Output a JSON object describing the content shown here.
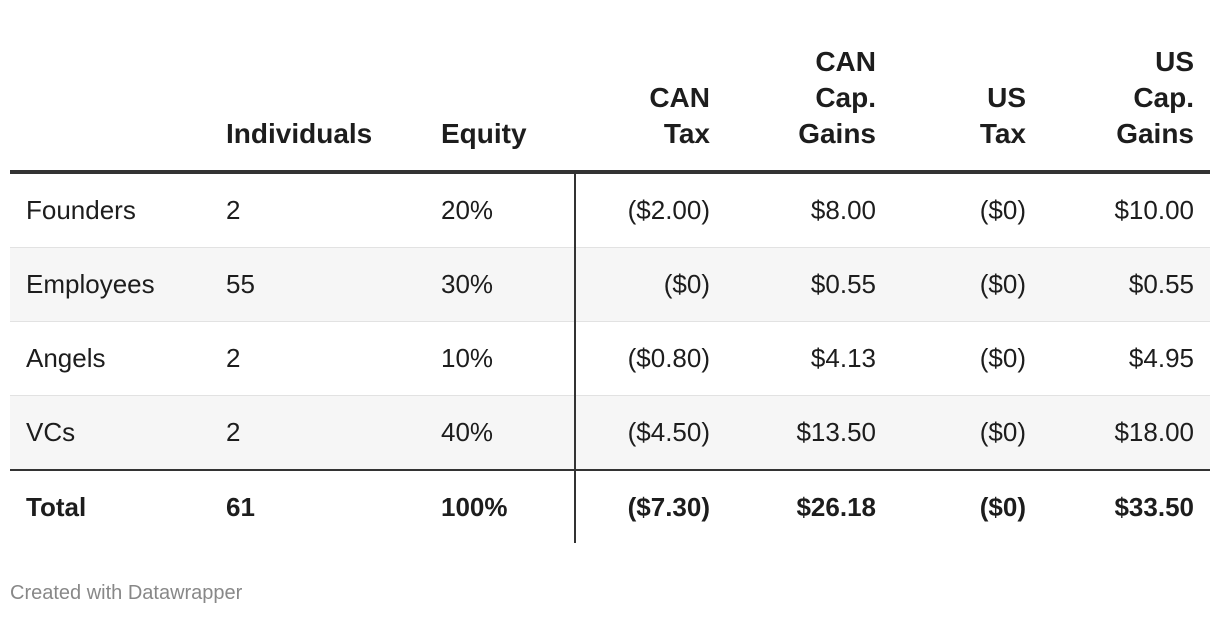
{
  "chart_data": {
    "type": "table",
    "columns": [
      {
        "lines": [
          ""
        ]
      },
      {
        "lines": [
          "Individuals"
        ]
      },
      {
        "lines": [
          "Equity"
        ]
      },
      {
        "lines": [
          "CAN",
          "Tax"
        ]
      },
      {
        "lines": [
          "CAN",
          "Cap.",
          "Gains"
        ]
      },
      {
        "lines": [
          "US",
          "Tax"
        ]
      },
      {
        "lines": [
          "US",
          "Cap.",
          "Gains"
        ]
      }
    ],
    "rows": [
      {
        "group": "Founders",
        "individuals": "2",
        "equity": "20%",
        "can_tax": "($2.00)",
        "can_cap_gains": "$8.00",
        "us_tax": "($0)",
        "us_cap_gains": "$10.00"
      },
      {
        "group": "Employees",
        "individuals": "55",
        "equity": "30%",
        "can_tax": "($0)",
        "can_cap_gains": "$0.55",
        "us_tax": "($0)",
        "us_cap_gains": "$0.55"
      },
      {
        "group": "Angels",
        "individuals": "2",
        "equity": "10%",
        "can_tax": "($0.80)",
        "can_cap_gains": "$4.13",
        "us_tax": "($0)",
        "us_cap_gains": "$4.95"
      },
      {
        "group": "VCs",
        "individuals": "2",
        "equity": "40%",
        "can_tax": "($4.50)",
        "can_cap_gains": "$13.50",
        "us_tax": "($0)",
        "us_cap_gains": "$18.00"
      }
    ],
    "total": {
      "group": "Total",
      "individuals": "61",
      "equity": "100%",
      "can_tax": "($7.30)",
      "can_cap_gains": "$26.18",
      "us_tax": "($0)",
      "us_cap_gains": "$33.50"
    }
  },
  "footer": {
    "credit": "Created with Datawrapper"
  },
  "colors": {
    "row_stripe": "#f6f6f6",
    "rule": "#333333",
    "footer_text": "#888888"
  }
}
